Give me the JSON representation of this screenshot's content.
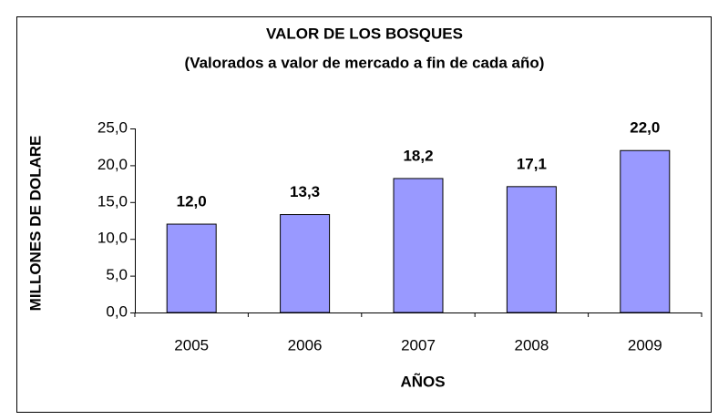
{
  "chart_data": {
    "type": "bar",
    "title": "VALOR DE LOS BOSQUES",
    "subtitle": "(Valorados a valor de mercado a fin de cada año)",
    "x_label": "AÑOS",
    "y_label": "MILLONES DE DOLARE",
    "categories": [
      "2005",
      "2006",
      "2007",
      "2008",
      "2009"
    ],
    "values": [
      12.0,
      13.3,
      18.2,
      17.1,
      22.0
    ],
    "value_labels": [
      "12,0",
      "13,3",
      "18,2",
      "17,1",
      "22,0"
    ],
    "color": "#9999ff",
    "ylim": [
      0,
      25
    ],
    "yticks": [
      {
        "value": 0,
        "label": "0,0"
      },
      {
        "value": 5,
        "label": "5,0"
      },
      {
        "value": 10,
        "label": "10,0"
      },
      {
        "value": 15,
        "label": "15,0"
      },
      {
        "value": 20,
        "label": "20,0"
      },
      {
        "value": 25,
        "label": "25,0"
      }
    ],
    "grid": false
  }
}
